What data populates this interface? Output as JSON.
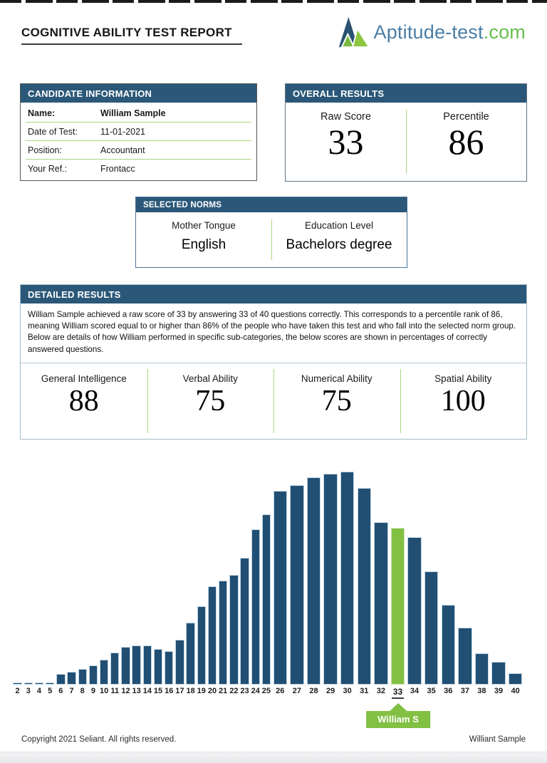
{
  "page": {
    "title": "COGNITIVE ABILITY TEST REPORT"
  },
  "logo": {
    "name": "Aptitude-test",
    "tld": ".com",
    "colors": {
      "navy": "#2a5272",
      "green_front": "#7ab93e",
      "green_right": "#8dc63f",
      "text_blue": "#4a7ea6",
      "text_green": "#67bf4e"
    }
  },
  "candidate": {
    "header": "CANDIDATE INFORMATION",
    "rows": [
      {
        "label": "Name:",
        "value": "William Sample"
      },
      {
        "label": "Date of Test:",
        "value": "11-01-2021"
      },
      {
        "label": "Position:",
        "value": "Accountant"
      },
      {
        "label": "Your Ref.:",
        "value": "Frontacc"
      }
    ]
  },
  "overall": {
    "header": "OVERALL RESULTS",
    "metrics": [
      {
        "label": "Raw Score",
        "value": "33"
      },
      {
        "label": "Percentile",
        "value": "86"
      }
    ]
  },
  "norms": {
    "header": "SELECTED NORMS",
    "metrics": [
      {
        "label": "Mother Tongue",
        "value": "English"
      },
      {
        "label": "Education Level",
        "value": "Bachelors degree"
      }
    ]
  },
  "detailed": {
    "header": "DETAILED RESULTS",
    "paragraph": "William Sample achieved a raw score of 33 by answering 33 of 40 questions correctly. This corresponds to a percentile rank of 86, meaning William scored equal to or higher than 86% of the people who have taken this test and who fall into the selected norm group. Below are details of how William performed in specific sub-categories, the below scores are shown in percentages of correctly answered questions.",
    "scores": [
      {
        "label": "General Intelligence",
        "value": "88"
      },
      {
        "label": "Verbal Ability",
        "value": "75"
      },
      {
        "label": "Numerical Ability",
        "value": "75"
      },
      {
        "label": "Spatial Ability",
        "value": "100"
      }
    ]
  },
  "chart_data": {
    "type": "bar",
    "title": "Score distribution of norm group (no axis labels shown)",
    "categories": [
      2,
      3,
      4,
      5,
      6,
      7,
      8,
      9,
      10,
      11,
      12,
      13,
      14,
      15,
      16,
      17,
      18,
      19,
      20,
      21,
      22,
      23,
      24,
      25,
      26,
      27,
      28,
      29,
      30,
      31,
      32,
      33,
      34,
      35,
      36,
      37,
      38,
      39,
      40
    ],
    "values": [
      3,
      3,
      3,
      3,
      15,
      18,
      22,
      27,
      35,
      45,
      53,
      55,
      55,
      50,
      47,
      63,
      87,
      110,
      138,
      146,
      154,
      178,
      218,
      239,
      272,
      280,
      291,
      296,
      299,
      276,
      228,
      220,
      207,
      159,
      112,
      80,
      44,
      32,
      16
    ],
    "value_unit": "relative bar height in px (chart shows no y-axis, gridlines or legend)",
    "bar_color": "#214f74",
    "highlight": {
      "category": 33,
      "label": "William S",
      "color": "#82c043"
    },
    "layout": {
      "narrow_column_categories": "2-25",
      "wide_column_categories": "26-40",
      "x_axis_bold_labels": true
    }
  },
  "footer": {
    "left": "Copyright 2021 Seliant. All rights reserved.",
    "right": "Williant Sample"
  },
  "colors": {
    "header_blue": "#2b5878",
    "accent_green_line": "#abd47f",
    "bar_blue": "#214f74",
    "highlight_green": "#82c043"
  }
}
